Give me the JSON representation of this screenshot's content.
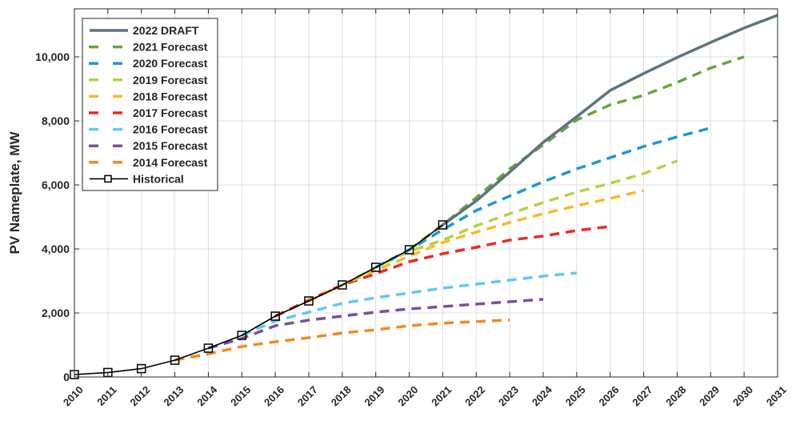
{
  "chart_data": {
    "type": "line",
    "title": "",
    "xlabel": "",
    "ylabel": "PV Nameplate, MW",
    "xlim": [
      2010,
      2031
    ],
    "ylim": [
      0,
      11500
    ],
    "x_ticks": [
      2010,
      2011,
      2012,
      2013,
      2014,
      2015,
      2016,
      2017,
      2018,
      2019,
      2020,
      2021,
      2022,
      2023,
      2024,
      2025,
      2026,
      2027,
      2028,
      2029,
      2030,
      2031
    ],
    "y_ticks": [
      0,
      2000,
      4000,
      6000,
      8000,
      10000
    ],
    "y_tick_labels": [
      "0",
      "2,000",
      "4,000",
      "6,000",
      "8,000",
      "10,000"
    ],
    "grid": true,
    "legend_position": "top-left",
    "series": [
      {
        "name": "2022 DRAFT",
        "color": "#5f737e",
        "style": "solid",
        "x": [
          2021,
          2022,
          2023,
          2024,
          2025,
          2026,
          2027,
          2028,
          2029,
          2030,
          2031
        ],
        "y": [
          4750,
          5500,
          6400,
          7330,
          8130,
          8950,
          9480,
          9980,
          10450,
          10900,
          11300
        ]
      },
      {
        "name": "2021 Forecast",
        "color": "#64a83c",
        "style": "dashed",
        "x": [
          2020,
          2021,
          2022,
          2023,
          2024,
          2025,
          2026,
          2027,
          2028,
          2029,
          2030
        ],
        "y": [
          3975,
          4750,
          5600,
          6500,
          7250,
          8030,
          8500,
          8800,
          9200,
          9650,
          10000
        ]
      },
      {
        "name": "2020 Forecast",
        "color": "#1b98d5",
        "style": "dashed",
        "x": [
          2019,
          2020,
          2021,
          2022,
          2023,
          2024,
          2025,
          2026,
          2027,
          2028,
          2029
        ],
        "y": [
          3425,
          3975,
          4600,
          5200,
          5650,
          6100,
          6500,
          6850,
          7200,
          7500,
          7780
        ]
      },
      {
        "name": "2019 Forecast",
        "color": "#b4d344",
        "style": "dashed",
        "x": [
          2018,
          2019,
          2020,
          2021,
          2022,
          2023,
          2024,
          2025,
          2026,
          2027,
          2028
        ],
        "y": [
          2875,
          3425,
          3925,
          4275,
          4725,
          5100,
          5450,
          5775,
          6050,
          6350,
          6750
        ]
      },
      {
        "name": "2018 Forecast",
        "color": "#fbb829",
        "style": "dashed",
        "x": [
          2017,
          2018,
          2019,
          2020,
          2021,
          2022,
          2023,
          2024,
          2025,
          2026,
          2027
        ],
        "y": [
          2375,
          2875,
          3330,
          3775,
          4200,
          4525,
          4825,
          5100,
          5350,
          5575,
          5825
        ]
      },
      {
        "name": "2017 Forecast",
        "color": "#ec2b24",
        "style": "dashed",
        "x": [
          2016,
          2017,
          2018,
          2019,
          2020,
          2021,
          2022,
          2023,
          2024,
          2025,
          2026
        ],
        "y": [
          1900,
          2400,
          2875,
          3225,
          3600,
          3850,
          4050,
          4275,
          4400,
          4575,
          4700
        ]
      },
      {
        "name": "2016 Forecast",
        "color": "#5ccbf4",
        "style": "dashed",
        "x": [
          2015,
          2016,
          2017,
          2018,
          2019,
          2020,
          2021,
          2022,
          2023,
          2024,
          2025
        ],
        "y": [
          1300,
          1750,
          2025,
          2300,
          2475,
          2625,
          2775,
          2900,
          3025,
          3150,
          3250
        ]
      },
      {
        "name": "2015 Forecast",
        "color": "#7b4f9d",
        "style": "dashed",
        "x": [
          2014,
          2015,
          2016,
          2017,
          2018,
          2019,
          2020,
          2021,
          2022,
          2023,
          2024
        ],
        "y": [
          900,
          1200,
          1600,
          1775,
          1900,
          2025,
          2125,
          2200,
          2275,
          2350,
          2425
        ]
      },
      {
        "name": "2014 Forecast",
        "color": "#f5891f",
        "style": "dashed",
        "x": [
          2013,
          2014,
          2015,
          2016,
          2017,
          2018,
          2019,
          2020,
          2021,
          2022,
          2023
        ],
        "y": [
          525,
          725,
          950,
          1100,
          1225,
          1375,
          1475,
          1600,
          1680,
          1730,
          1780
        ]
      },
      {
        "name": "Historical",
        "color": "#000000",
        "style": "solid-markers",
        "marker": "square",
        "x": [
          2010,
          2011,
          2012,
          2013,
          2014,
          2015,
          2016,
          2017,
          2018,
          2019,
          2020,
          2021
        ],
        "y": [
          75,
          140,
          260,
          525,
          900,
          1300,
          1900,
          2375,
          2875,
          3425,
          3975,
          4750
        ]
      }
    ]
  }
}
